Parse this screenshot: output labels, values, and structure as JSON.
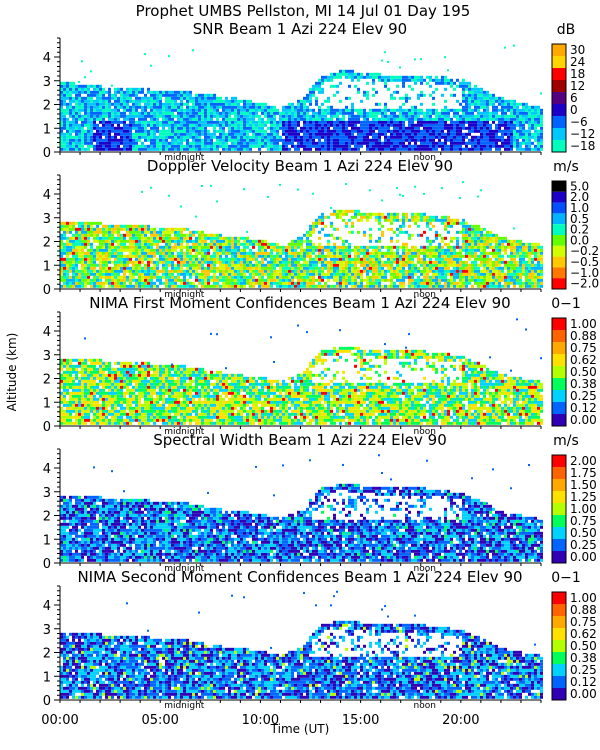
{
  "header": {
    "title_line": "Prophet  UMBS Pellston, MI  14 Jul 01 Day 195"
  },
  "axes": {
    "ylabel": "Altitude (km)",
    "xlabel": "Time (UT)",
    "x_range_hours": [
      0,
      24
    ],
    "x_ticks": [
      {
        "hour": 0,
        "label": "00:00"
      },
      {
        "hour": 5,
        "label": "05:00"
      },
      {
        "hour": 10,
        "label": "10:00"
      },
      {
        "hour": 15,
        "label": "15:00"
      },
      {
        "hour": 20,
        "label": "20:00"
      }
    ],
    "y_range_km": [
      0,
      4.8
    ],
    "y_ticks": [
      "0",
      "1",
      "2",
      "3",
      "4"
    ],
    "markers": [
      {
        "label": "midnight",
        "hour": 6.2
      },
      {
        "label": "noon",
        "hour": 18.2
      }
    ]
  },
  "chart_data": [
    {
      "type": "heatmap",
      "title": "SNR Beam 1 Azi 224 Elev 90",
      "unit": "dB",
      "colorbar_labels": [
        "30",
        "24",
        "18",
        "12",
        "6",
        "0",
        "−6",
        "−12",
        "−18"
      ],
      "colors": [
        "#ffa800",
        "#ffd400",
        "#ff0000",
        "#a00000",
        "#55007f",
        "#1c00c8",
        "#0064ff",
        "#00c8ff",
        "#00ffbe"
      ],
      "cloud_top_km": [
        [
          0,
          2.9
        ],
        [
          2,
          2.7
        ],
        [
          4,
          2.6
        ],
        [
          6,
          2.5
        ],
        [
          8,
          2.3
        ],
        [
          10,
          2.0
        ],
        [
          11,
          1.8
        ],
        [
          12,
          2.2
        ],
        [
          13,
          3.1
        ],
        [
          14,
          3.4
        ],
        [
          16,
          3.2
        ],
        [
          18,
          3.2
        ],
        [
          20,
          3.0
        ],
        [
          22,
          2.2
        ],
        [
          24,
          1.8
        ]
      ]
    },
    {
      "type": "heatmap",
      "title": "Doppler Velocity Beam 1 Azi 224 Elev 90",
      "unit": "m/s",
      "colorbar_labels": [
        "5.0",
        "2.0",
        "1.0",
        "0.5",
        "0.2",
        "0.0",
        "−0.2",
        "−0.5",
        "−1.0",
        "−2.0"
      ],
      "colors": [
        "#000000",
        "#1c00c8",
        "#0050ff",
        "#00b4ff",
        "#00ffbe",
        "#64ff00",
        "#d2ff00",
        "#ffc800",
        "#ff7800",
        "#ff0000"
      ],
      "cloud_top_km": [
        [
          0,
          2.8
        ],
        [
          2,
          2.7
        ],
        [
          4,
          2.6
        ],
        [
          6,
          2.5
        ],
        [
          8,
          2.2
        ],
        [
          10,
          2.0
        ],
        [
          11,
          1.8
        ],
        [
          12,
          2.2
        ],
        [
          13,
          3.1
        ],
        [
          14,
          3.3
        ],
        [
          16,
          3.1
        ],
        [
          18,
          3.1
        ],
        [
          20,
          2.9
        ],
        [
          22,
          2.1
        ],
        [
          24,
          1.8
        ]
      ]
    },
    {
      "type": "heatmap",
      "title": "NIMA First Moment Confidences Beam 1 Azi 224 Elev 90",
      "unit": "0−1",
      "colorbar_labels": [
        "1.00",
        "0.88",
        "0.75",
        "0.62",
        "0.50",
        "0.38",
        "0.25",
        "0.12",
        "0.00"
      ],
      "colors": [
        "#ff0000",
        "#ff6400",
        "#ffa800",
        "#ffe100",
        "#b4ff00",
        "#00ff5a",
        "#00d2ff",
        "#0064ff",
        "#3200b4"
      ],
      "cloud_top_km": [
        [
          0,
          2.8
        ],
        [
          2,
          2.7
        ],
        [
          4,
          2.6
        ],
        [
          6,
          2.5
        ],
        [
          8,
          2.2
        ],
        [
          10,
          2.0
        ],
        [
          11,
          1.8
        ],
        [
          12,
          2.2
        ],
        [
          13,
          3.1
        ],
        [
          14,
          3.3
        ],
        [
          16,
          3.1
        ],
        [
          18,
          3.1
        ],
        [
          20,
          2.9
        ],
        [
          22,
          2.1
        ],
        [
          24,
          1.8
        ]
      ]
    },
    {
      "type": "heatmap",
      "title": "Spectral Width Beam 1 Azi 224 Elev 90",
      "unit": "m/s",
      "colorbar_labels": [
        "2.00",
        "1.75",
        "1.50",
        "1.25",
        "1.00",
        "0.75",
        "0.50",
        "0.25",
        "0.00"
      ],
      "colors": [
        "#ff0000",
        "#ff6400",
        "#ffa800",
        "#ffe100",
        "#b4ff00",
        "#00ff5a",
        "#00d2ff",
        "#0064ff",
        "#3200b4"
      ],
      "cloud_top_km": [
        [
          0,
          2.8
        ],
        [
          2,
          2.7
        ],
        [
          4,
          2.6
        ],
        [
          6,
          2.5
        ],
        [
          8,
          2.2
        ],
        [
          10,
          2.0
        ],
        [
          11,
          1.8
        ],
        [
          12,
          2.2
        ],
        [
          13,
          3.1
        ],
        [
          14,
          3.3
        ],
        [
          16,
          3.1
        ],
        [
          18,
          3.1
        ],
        [
          20,
          2.9
        ],
        [
          22,
          2.1
        ],
        [
          24,
          1.8
        ]
      ]
    },
    {
      "type": "heatmap",
      "title": "NIMA Second Moment Confidences Beam 1 Azi 224 Elev 90",
      "unit": "0−1",
      "colorbar_labels": [
        "1.00",
        "0.88",
        "0.75",
        "0.62",
        "0.50",
        "0.38",
        "0.25",
        "0.12",
        "0.00"
      ],
      "colors": [
        "#ff0000",
        "#ff6400",
        "#ffa800",
        "#ffe100",
        "#b4ff00",
        "#00ff5a",
        "#00d2ff",
        "#0064ff",
        "#3200b4"
      ],
      "cloud_top_km": [
        [
          0,
          2.8
        ],
        [
          2,
          2.7
        ],
        [
          4,
          2.6
        ],
        [
          6,
          2.5
        ],
        [
          8,
          2.2
        ],
        [
          10,
          2.0
        ],
        [
          11,
          1.8
        ],
        [
          12,
          2.2
        ],
        [
          13,
          3.1
        ],
        [
          14,
          3.3
        ],
        [
          16,
          3.1
        ],
        [
          18,
          3.1
        ],
        [
          20,
          2.9
        ],
        [
          22,
          2.1
        ],
        [
          24,
          1.8
        ]
      ]
    }
  ]
}
